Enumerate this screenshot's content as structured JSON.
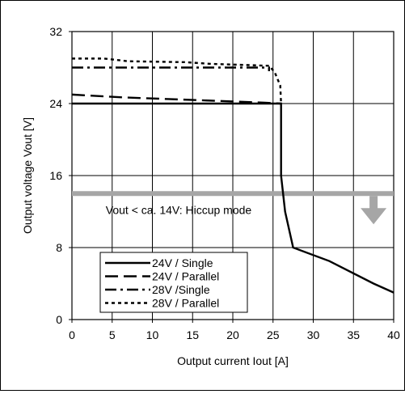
{
  "chart_data": {
    "type": "line",
    "title": "",
    "xlabel": "Output current Iout [A]",
    "ylabel": "Output voltage Vout [V]",
    "xlim": [
      0,
      40
    ],
    "ylim": [
      0,
      32
    ],
    "x_ticks": [
      0,
      5,
      10,
      15,
      20,
      25,
      30,
      35,
      40
    ],
    "y_ticks": [
      0,
      8,
      16,
      24,
      32
    ],
    "grid": true,
    "legend_position": "bottom-left",
    "annotation": {
      "text": "Vout < ca. 14V: Hiccup mode",
      "threshold_y": 14
    },
    "series": [
      {
        "name": "24V / Single",
        "dash": "solid",
        "color": "#000000",
        "points": [
          [
            0,
            24.0
          ],
          [
            26.0,
            24.0
          ],
          [
            26.0,
            16.0
          ],
          [
            26.5,
            12.0
          ],
          [
            27.5,
            8.0
          ],
          [
            32,
            6.5
          ],
          [
            37.5,
            4.0
          ],
          [
            40,
            3.0
          ]
        ]
      },
      {
        "name": "24V / Parallel",
        "dash": "long-dash",
        "color": "#000000",
        "points": [
          [
            0,
            25.0
          ],
          [
            6,
            24.7
          ],
          [
            12,
            24.5
          ],
          [
            18,
            24.3
          ],
          [
            24,
            24.1
          ],
          [
            26.0,
            24.0
          ]
        ]
      },
      {
        "name": "28V /Single",
        "dash": "dash-dot",
        "color": "#000000",
        "points": [
          [
            0,
            28.0
          ],
          [
            24.5,
            28.0
          ],
          [
            24.5,
            27.6
          ]
        ]
      },
      {
        "name": "28V / Parallel",
        "dash": "dotted",
        "color": "#000000",
        "points": [
          [
            0,
            29.0
          ],
          [
            4,
            29.0
          ],
          [
            7,
            28.7
          ],
          [
            14,
            28.6
          ],
          [
            17.5,
            28.4
          ],
          [
            24.5,
            28.2
          ],
          [
            25.2,
            27.5
          ],
          [
            25.9,
            26.0
          ],
          [
            26.0,
            24.0
          ]
        ]
      }
    ],
    "colors": {
      "hiccup_band": "#a6a6a6",
      "hiccup_arrow": "#a6a6a6",
      "grid": "#000000"
    }
  }
}
